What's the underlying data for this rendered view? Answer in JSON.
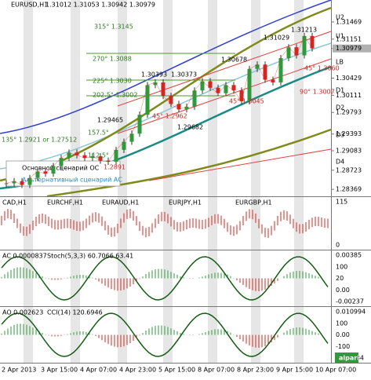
{
  "header": {
    "symbol": "EURUSD,H1",
    "ohlc": "1.31012 1.31053 1.30942 1.30979"
  },
  "chart_data": {
    "type": "candle-line",
    "color": "#d4261e",
    "values": [
      1.2848,
      1.2852,
      1.2845,
      1.2858,
      1.287,
      1.2866,
      1.288,
      1.2895,
      1.2905,
      1.29,
      1.2895,
      1.2898,
      1.289,
      1.2888,
      1.291,
      1.2925,
      1.294,
      1.2975,
      1.303,
      1.3035,
      1.301,
      1.2995,
      1.2985,
      1.299,
      1.302,
      1.3037,
      1.3025,
      1.3015,
      1.303,
      1.302,
      1.3,
      1.306,
      1.3068,
      1.304,
      1.3035,
      1.308,
      1.31,
      1.3085,
      1.3121,
      1.3098
    ],
    "ylim": [
      1.2824,
      1.31876
    ],
    "yticks": [
      1.31469,
      1.31151,
      1.30979,
      1.30429,
      1.30111,
      1.29793,
      1.29393,
      1.29083,
      1.28723,
      1.28369
    ]
  },
  "levels": [
    "315° 1.3145",
    "270° 1.3088",
    "225° 1.3030",
    "202.5° 1.3002",
    "157.5°",
    "135° 1.2921 or 1.27512",
    "112.5°",
    "45° 1.2962",
    "45° 1.3060",
    "45° 1.3045",
    "90° 1.3007",
    "1.2891"
  ],
  "peaks": [
    "1.29465",
    "1.30393",
    "1.30373",
    "1.30678",
    "1.31029",
    "1.31213",
    "1.29682"
  ],
  "zones": [
    "U2",
    "U1",
    "LB",
    "D1",
    "D2",
    "D3",
    "D4"
  ],
  "legend": [
    "Основной сценарий ОС",
    "Альтернативный сценарий АС"
  ],
  "cross_panel": {
    "labels": [
      "CAD,H1",
      "EURCHF,H1",
      "EURAUD,H1",
      "EURJPY,H1",
      "EURGBP,H1"
    ],
    "axis": [
      "115",
      "0"
    ]
  },
  "ac_panel": {
    "labels": [
      "AC 0.0000837",
      "Stoch(5,3,3) 60.7066 63.41"
    ],
    "axis": [
      "0.00385",
      "100",
      "20",
      "0.00",
      "-0.00237"
    ]
  },
  "ao_panel": {
    "labels": [
      "AO 0.002623",
      "CCI(14) 120.6946"
    ],
    "axis": [
      "0.010994",
      "100",
      "0.00",
      "-100",
      "-0.01084"
    ]
  },
  "logo": "alpari",
  "dates": [
    "2 Apr 2013",
    "3 Apr 15:00",
    "4 Apr 07:00",
    "4 Apr 23:00",
    "5 Apr 15:00",
    "8 Apr 07:00",
    "8 Apr 23:00",
    "9 Apr 15:00",
    "10 Apr 07:00"
  ]
}
